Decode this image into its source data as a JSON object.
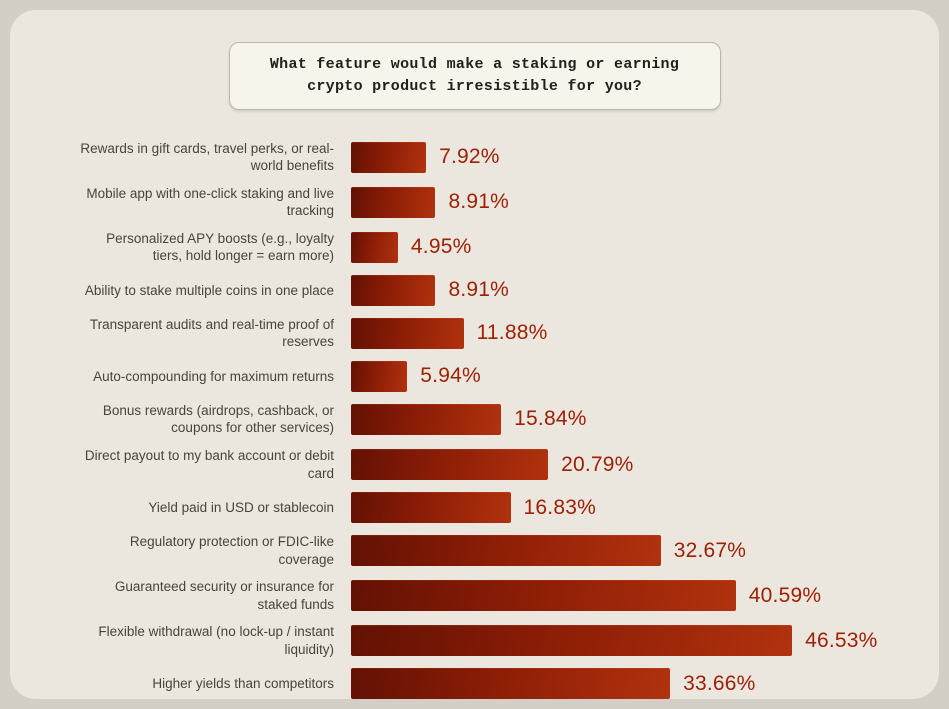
{
  "header": {
    "title": "What feature would make a staking or earning crypto product irresistible for you?"
  },
  "chart_data": {
    "type": "bar",
    "orientation": "horizontal",
    "title": "What feature would make a staking or earning crypto product irresistible for you?",
    "xlabel": "",
    "ylabel": "",
    "xlim": [
      0,
      50
    ],
    "grid": false,
    "legend": "none",
    "categories": [
      "Rewards in gift cards, travel perks, or real-world benefits",
      "Mobile app with one-click staking and live tracking",
      "Personalized APY boosts (e.g., loyalty tiers, hold longer = earn more)",
      "Ability to stake multiple coins in one place",
      "Transparent audits and real-time proof of reserves",
      "Auto-compounding for maximum returns",
      "Bonus rewards (airdrops, cashback, or coupons for other services)",
      "Direct payout to my bank account or debit card",
      "Yield paid in USD or stablecoin",
      "Regulatory protection or FDIC-like coverage",
      "Guaranteed security or insurance for staked funds",
      "Flexible withdrawal (no lock-up / instant liquidity)",
      "Higher yields than competitors"
    ],
    "values": [
      7.92,
      8.91,
      4.95,
      8.91,
      11.88,
      5.94,
      15.84,
      20.79,
      16.83,
      32.67,
      40.59,
      46.53,
      33.66
    ],
    "value_labels": [
      "7.92%",
      "8.91%",
      "4.95%",
      "8.91%",
      "11.88%",
      "5.94%",
      "15.84%",
      "20.79%",
      "16.83%",
      "32.67%",
      "40.59%",
      "46.53%",
      "33.66%"
    ],
    "colors": {
      "bar_gradient_start": "#621104",
      "bar_gradient_end": "#b1320e",
      "value_text": "#9e2005",
      "category_text": "#46453c",
      "card_background": "#ebe7df",
      "page_background": "#d3cfc7",
      "title_box_background": "#f7f4ec",
      "title_box_border": "#b9b6ac"
    }
  }
}
